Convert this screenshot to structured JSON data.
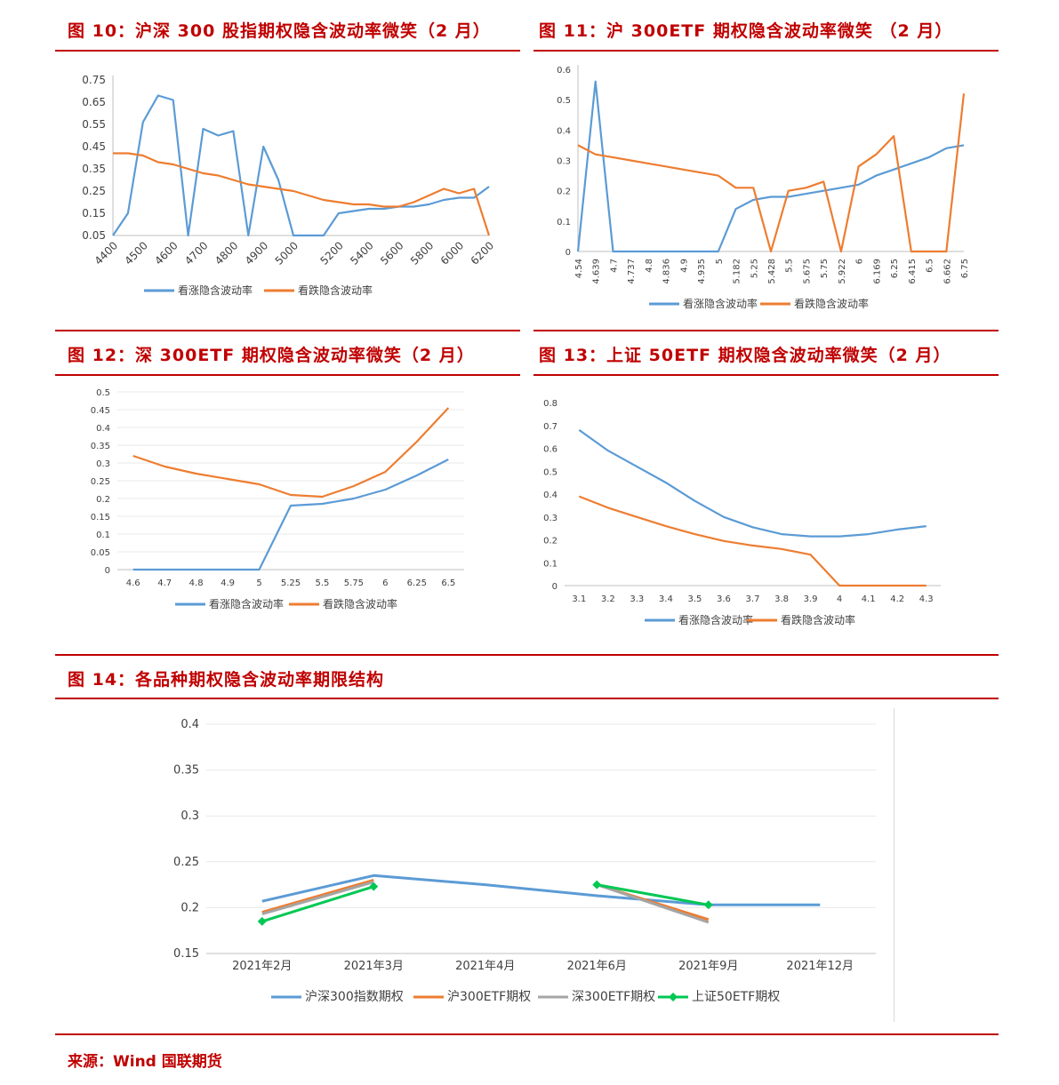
{
  "figures": {
    "fig10": {
      "title": "图 10：沪深 300 股指期权隐含波动率微笑（2 月）"
    },
    "fig11": {
      "title": "图 11：沪 300ETF 期权隐含波动率微笑  （2 月）"
    },
    "fig12": {
      "title": "图 12：深 300ETF 期权隐含波动率微笑（2 月）"
    },
    "fig13": {
      "title": "图 13：上证 50ETF 期权隐含波动率微笑（2 月）"
    },
    "fig14": {
      "title": "图 14：各品种期权隐含波动率期限结构"
    }
  },
  "source": "来源：Wind 国联期货",
  "colors": {
    "blue": "#5b9bd5",
    "orange": "#ed7d31",
    "gray": "#a5a5a5",
    "green": "#00c853",
    "red": "#c00000"
  },
  "chart_data": [
    {
      "id": "fig10",
      "type": "line",
      "x": [
        "4400",
        "4450",
        "4500",
        "4550",
        "4600",
        "4650",
        "4700",
        "4750",
        "4800",
        "4850",
        "4900",
        "4950",
        "5000",
        "5050",
        "5100",
        "5200",
        "5300",
        "5400",
        "5500",
        "5600",
        "5700",
        "5800",
        "5900",
        "6000",
        "6100",
        "6200"
      ],
      "xticks": [
        "4400",
        "4500",
        "4600",
        "4700",
        "4800",
        "4900",
        "5000",
        "5200",
        "5400",
        "5600",
        "5800",
        "6000",
        "6200"
      ],
      "yticks": [
        "0.05",
        "0.15",
        "0.25",
        "0.35",
        "0.45",
        "0.55",
        "0.65",
        "0.75"
      ],
      "ylim": [
        0.05,
        0.75
      ],
      "series": [
        {
          "name": "看涨隐含波动率",
          "color": "#5b9bd5",
          "values": [
            0.03,
            0.15,
            0.56,
            0.68,
            0.66,
            0.02,
            0.53,
            0.5,
            0.52,
            0.02,
            0.45,
            0.3,
            0.02,
            0.02,
            0.02,
            0.15,
            0.16,
            0.17,
            0.17,
            0.18,
            0.18,
            0.19,
            0.21,
            0.22,
            0.22,
            0.27
          ]
        },
        {
          "name": "看跌隐含波动率",
          "color": "#ed7d31",
          "values": [
            0.42,
            0.42,
            0.41,
            0.38,
            0.37,
            0.35,
            0.33,
            0.32,
            0.3,
            0.28,
            0.27,
            0.26,
            0.25,
            0.23,
            0.21,
            0.2,
            0.19,
            0.19,
            0.18,
            0.18,
            0.2,
            0.23,
            0.26,
            0.24,
            0.26,
            0.02
          ]
        }
      ]
    },
    {
      "id": "fig11",
      "type": "line",
      "x": [
        "4.54",
        "4.639",
        "4.7",
        "4.737",
        "4.8",
        "4.836",
        "4.9",
        "4.935",
        "5",
        "5.182",
        "5.25",
        "5.428",
        "5.5",
        "5.675",
        "5.75",
        "5.922",
        "6",
        "6.169",
        "6.25",
        "6.415",
        "6.5",
        "6.662",
        "6.75"
      ],
      "yticks": [
        "0",
        "0.1",
        "0.2",
        "0.3",
        "0.4",
        "0.5",
        "0.6"
      ],
      "ylim": [
        0,
        0.6
      ],
      "series": [
        {
          "name": "看涨隐含波动率",
          "color": "#5b9bd5",
          "values": [
            0,
            0.56,
            0,
            0,
            0,
            0,
            0,
            0,
            0,
            0.14,
            0.17,
            0.18,
            0.18,
            0.19,
            0.2,
            0.21,
            0.22,
            0.25,
            0.27,
            0.29,
            0.31,
            0.34,
            0.35
          ]
        },
        {
          "name": "看跌隐含波动率",
          "color": "#ed7d31",
          "values": [
            0.35,
            0.32,
            0.31,
            0.3,
            0.29,
            0.28,
            0.27,
            0.26,
            0.25,
            0.21,
            0.21,
            0,
            0.2,
            0.21,
            0.23,
            0,
            0.28,
            0.32,
            0.38,
            0,
            0,
            0,
            0.52
          ]
        }
      ]
    },
    {
      "id": "fig12",
      "type": "line",
      "x": [
        "4.6",
        "4.7",
        "4.8",
        "4.9",
        "5",
        "5.25",
        "5.5",
        "5.75",
        "6",
        "6.25",
        "6.5"
      ],
      "yticks": [
        "0",
        "0.05",
        "0.1",
        "0.15",
        "0.2",
        "0.25",
        "0.3",
        "0.35",
        "0.4",
        "0.45",
        "0.5"
      ],
      "ylim": [
        0,
        0.5
      ],
      "series": [
        {
          "name": "看涨隐含波动率",
          "color": "#5b9bd5",
          "values": [
            0,
            0,
            0,
            0,
            0,
            0.18,
            0.185,
            0.2,
            0.225,
            0.265,
            0.31
          ]
        },
        {
          "name": "看跌隐含波动率",
          "color": "#ed7d31",
          "values": [
            0.32,
            0.29,
            0.27,
            0.255,
            0.24,
            0.21,
            0.205,
            0.235,
            0.275,
            0.36,
            0.455
          ]
        }
      ]
    },
    {
      "id": "fig13",
      "type": "line",
      "x": [
        "3.1",
        "3.2",
        "3.3",
        "3.4",
        "3.5",
        "3.6",
        "3.7",
        "3.8",
        "3.9",
        "4",
        "4.1",
        "4.2",
        "4.3"
      ],
      "yticks": [
        "0",
        "0.1",
        "0.2",
        "0.3",
        "0.4",
        "0.5",
        "0.6",
        "0.7",
        "0.8"
      ],
      "ylim": [
        0,
        0.8
      ],
      "series": [
        {
          "name": "看涨隐含波动率",
          "color": "#5b9bd5",
          "values": [
            0.68,
            0.59,
            0.52,
            0.45,
            0.37,
            0.3,
            0.255,
            0.225,
            0.215,
            0.215,
            0.225,
            0.245,
            0.26
          ]
        },
        {
          "name": "看跌隐含波动率",
          "color": "#ed7d31",
          "values": [
            0.39,
            0.34,
            0.3,
            0.26,
            0.225,
            0.195,
            0.175,
            0.16,
            0.135,
            0,
            0,
            0,
            0
          ]
        }
      ]
    },
    {
      "id": "fig14",
      "type": "line",
      "x": [
        "2021年2月",
        "2021年3月",
        "2021年4月",
        "2021年6月",
        "2021年9月",
        "2021年12月"
      ],
      "yticks": [
        "0.15",
        "0.2",
        "0.25",
        "0.3",
        "0.35",
        "0.4"
      ],
      "ylim": [
        0.15,
        0.4
      ],
      "series": [
        {
          "name": "沪深300指数期权",
          "color": "#5b9bd5",
          "marker": "none",
          "values": [
            0.207,
            0.235,
            0.225,
            0.213,
            0.203,
            0.203
          ]
        },
        {
          "name": "沪300ETF期权",
          "color": "#ed7d31",
          "marker": "none",
          "values": [
            0.195,
            0.23,
            null,
            0.225,
            0.187,
            null
          ]
        },
        {
          "name": "深300ETF期权",
          "color": "#a5a5a5",
          "marker": "none",
          "values": [
            0.193,
            0.228,
            null,
            0.225,
            0.184,
            null
          ]
        },
        {
          "name": "上证50ETF期权",
          "color": "#00c853",
          "marker": "diamond",
          "values": [
            0.185,
            0.223,
            null,
            0.225,
            0.203,
            null
          ]
        }
      ]
    }
  ]
}
